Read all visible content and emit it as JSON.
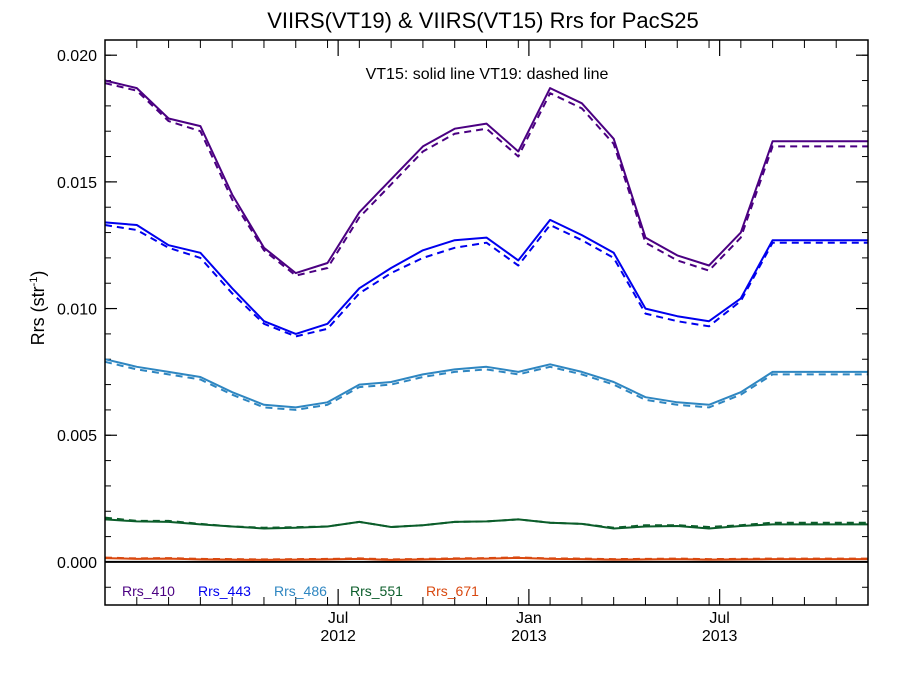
{
  "chart_data": {
    "type": "line",
    "title": "VIIRS(VT19) & VIIRS(VT15)  Rrs for PacS25",
    "annotation": "VT15: solid line   VT19: dashed line",
    "ylabel_main": "Rrs (str",
    "ylabel_sup": "-1",
    "ylabel_close": ")",
    "xlabel": "",
    "ylim": [
      -0.0017,
      0.0206
    ],
    "yticks": [
      {
        "value": 0.0,
        "label": "0.000"
      },
      {
        "value": 0.005,
        "label": "0.005"
      },
      {
        "value": 0.01,
        "label": "0.010"
      },
      {
        "value": 0.015,
        "label": "0.015"
      },
      {
        "value": 0.02,
        "label": "0.020"
      }
    ],
    "xlim": [
      0,
      36
    ],
    "xticks": [
      {
        "x": 11,
        "label": "Jul",
        "label2": "2012"
      },
      {
        "x": 20,
        "label": "Jan",
        "label2": "2013"
      },
      {
        "x": 29,
        "label": "Jul",
        "label2": "2013"
      }
    ],
    "x": [
      0,
      1.5,
      3,
      4.5,
      6,
      7.5,
      9,
      10.5,
      12,
      13.5,
      15,
      16.5,
      18,
      19.5,
      21,
      22.5,
      24,
      25.5,
      27,
      28.5,
      30,
      31.5,
      33,
      34.5,
      36
    ],
    "series": [
      {
        "name": "Rrs_410",
        "color": "#4b0082",
        "vt15": [
          0.019,
          0.0187,
          0.0175,
          0.0172,
          0.0145,
          0.0124,
          0.0114,
          0.0118,
          0.0138,
          0.0151,
          0.0164,
          0.0171,
          0.0173,
          0.0162,
          0.0187,
          0.0181,
          0.0167,
          0.0128,
          0.0121,
          0.0117,
          0.013,
          0.0166,
          0.0166,
          0.0166,
          0.0166
        ],
        "vt19": [
          0.0189,
          0.0186,
          0.0174,
          0.017,
          0.0143,
          0.0123,
          0.0113,
          0.0116,
          0.0136,
          0.0149,
          0.0162,
          0.0169,
          0.0171,
          0.016,
          0.0185,
          0.0179,
          0.0165,
          0.0126,
          0.0119,
          0.0115,
          0.0128,
          0.0164,
          0.0164,
          0.0164,
          0.0164
        ]
      },
      {
        "name": "Rrs_443",
        "color": "#0000ee",
        "vt15": [
          0.0134,
          0.0133,
          0.0125,
          0.0122,
          0.0108,
          0.0095,
          0.009,
          0.0094,
          0.0108,
          0.0116,
          0.0123,
          0.0127,
          0.0128,
          0.0119,
          0.0135,
          0.0129,
          0.0122,
          0.01,
          0.0097,
          0.0095,
          0.0104,
          0.0127,
          0.0127,
          0.0127,
          0.0127
        ],
        "vt19": [
          0.0133,
          0.0131,
          0.0124,
          0.012,
          0.0106,
          0.0094,
          0.0089,
          0.0092,
          0.0106,
          0.0114,
          0.012,
          0.0124,
          0.0126,
          0.0117,
          0.0133,
          0.0127,
          0.012,
          0.0098,
          0.0095,
          0.0093,
          0.0103,
          0.0126,
          0.0126,
          0.0126,
          0.0126
        ]
      },
      {
        "name": "Rrs_486",
        "color": "#2e86c1",
        "vt15": [
          0.008,
          0.0077,
          0.0075,
          0.0073,
          0.0067,
          0.0062,
          0.0061,
          0.0063,
          0.007,
          0.0071,
          0.0074,
          0.0076,
          0.0077,
          0.0075,
          0.0078,
          0.0075,
          0.0071,
          0.0065,
          0.0063,
          0.0062,
          0.0067,
          0.0075,
          0.0075,
          0.0075,
          0.0075
        ],
        "vt19": [
          0.0079,
          0.0076,
          0.0074,
          0.0072,
          0.0066,
          0.0061,
          0.006,
          0.0062,
          0.0069,
          0.007,
          0.0073,
          0.0075,
          0.0076,
          0.0074,
          0.0077,
          0.0074,
          0.007,
          0.0064,
          0.0062,
          0.0061,
          0.0066,
          0.0074,
          0.0074,
          0.0074,
          0.0074
        ]
      },
      {
        "name": "Rrs_551",
        "color": "#0b5d2a",
        "vt15": [
          0.00168,
          0.0016,
          0.00158,
          0.00148,
          0.0014,
          0.00132,
          0.00135,
          0.0014,
          0.00158,
          0.00138,
          0.00145,
          0.00158,
          0.0016,
          0.00168,
          0.00155,
          0.0015,
          0.00132,
          0.0014,
          0.00142,
          0.00132,
          0.00142,
          0.00148,
          0.00148,
          0.00148,
          0.00148
        ],
        "vt19": [
          0.00175,
          0.00162,
          0.00162,
          0.0015,
          0.0014,
          0.00135,
          0.00137,
          0.0014,
          0.00158,
          0.00138,
          0.00145,
          0.00158,
          0.0016,
          0.00168,
          0.00155,
          0.0015,
          0.00135,
          0.00145,
          0.00145,
          0.00138,
          0.00145,
          0.00155,
          0.00155,
          0.00155,
          0.00155
        ]
      },
      {
        "name": "Rrs_671",
        "color": "#d9480f",
        "vt15": [
          0.00015,
          0.00012,
          0.00013,
          0.0001,
          9e-05,
          8e-05,
          9e-05,
          0.0001,
          0.00012,
          8e-05,
          0.0001,
          0.00012,
          0.00013,
          0.00016,
          0.00012,
          0.00011,
          9e-05,
          0.0001,
          0.00011,
          9e-05,
          0.0001,
          0.00011,
          0.00011,
          0.00011,
          0.00011
        ],
        "vt19": [
          0.00017,
          0.00014,
          0.00015,
          0.00012,
          0.00011,
          0.0001,
          0.00011,
          0.00012,
          0.00014,
          0.0001,
          0.00012,
          0.00014,
          0.00015,
          0.00018,
          0.00014,
          0.00013,
          0.00011,
          0.00012,
          0.00013,
          0.00011,
          0.00012,
          0.00013,
          0.00013,
          0.00013,
          0.00013
        ]
      }
    ],
    "zero_line": 0.0,
    "grid": false,
    "legend_placement": "bottom-left"
  }
}
